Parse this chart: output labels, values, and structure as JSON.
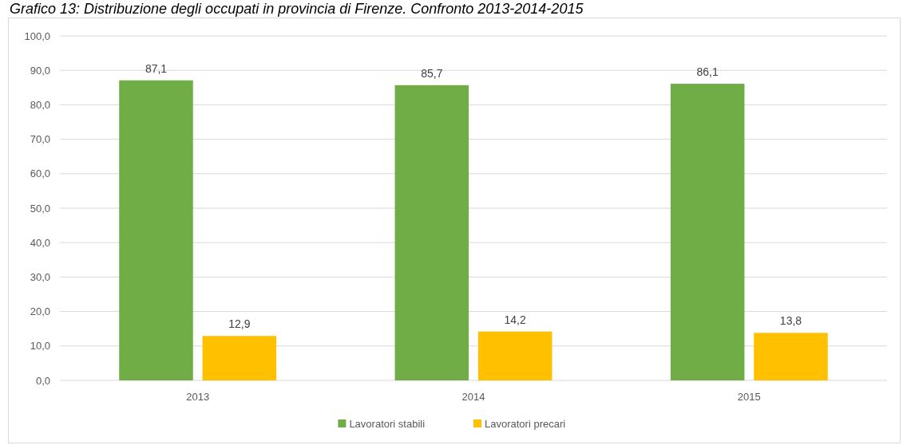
{
  "chart_data": {
    "type": "bar",
    "title": "Grafico 13: Distribuzione degli occupati in provincia di Firenze. Confronto 2013-2014-2015",
    "categories": [
      "2013",
      "2014",
      "2015"
    ],
    "series": [
      {
        "name": "Lavoratori stabili",
        "color": "#70ad47",
        "values": [
          87.1,
          85.7,
          86.1
        ],
        "value_labels": [
          "87,1",
          "85,7",
          "86,1"
        ]
      },
      {
        "name": "Lavoratori precari",
        "color": "#ffc000",
        "values": [
          12.9,
          14.2,
          13.8
        ],
        "value_labels": [
          "12,9",
          "14,2",
          "13,8"
        ]
      }
    ],
    "ylim": [
      0,
      100
    ],
    "yticks": [
      {
        "value": 0,
        "label": "0,0"
      },
      {
        "value": 10,
        "label": "10,0"
      },
      {
        "value": 20,
        "label": "20,0"
      },
      {
        "value": 30,
        "label": "30,0"
      },
      {
        "value": 40,
        "label": "40,0"
      },
      {
        "value": 50,
        "label": "50,0"
      },
      {
        "value": 60,
        "label": "60,0"
      },
      {
        "value": 70,
        "label": "70,0"
      },
      {
        "value": 80,
        "label": "80,0"
      },
      {
        "value": 90,
        "label": "90,0"
      },
      {
        "value": 100,
        "label": "100,0"
      }
    ],
    "grid": "y",
    "legend": "bottom"
  }
}
